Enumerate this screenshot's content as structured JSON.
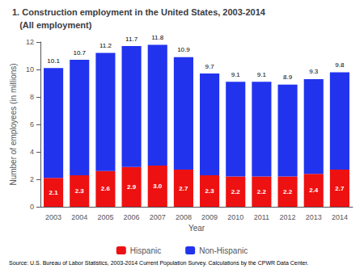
{
  "chart_data": {
    "type": "bar",
    "title": "1. Construction employment in the United States, 2003-2014",
    "subtitle": "   (All employment)",
    "annotations": [
      "Source: U.S. Bureau of Labor Statistics, 2003-2014 Current Population Survey. Calculations by the CPWR Data Center."
    ],
    "x_label": "Year",
    "y_label": "Number of employees (in millions)",
    "categories": [
      "2003",
      "2004",
      "2005",
      "2006",
      "2007",
      "2008",
      "2009",
      "2010",
      "2011",
      "2012",
      "2013",
      "2014"
    ],
    "series": [
      {
        "name": "Hispanic",
        "color": "#ee1111",
        "values": [
          2.1,
          2.3,
          2.6,
          2.9,
          3.0,
          2.7,
          2.3,
          2.2,
          2.2,
          2.2,
          2.4,
          2.7
        ],
        "value_labels": [
          "2.1",
          "2.3",
          "2.6",
          "2.9",
          "3.0",
          "2.7",
          "2.3",
          "2.2",
          "2.2",
          "2.2",
          "2.4",
          "2.7"
        ],
        "data_labels": true
      },
      {
        "name": "Non-Hispanic",
        "color": "#2233ee",
        "values": [
          8.0,
          8.4,
          8.6,
          8.8,
          8.8,
          8.2,
          7.4,
          6.9,
          6.9,
          6.7,
          6.9,
          7.1
        ]
      }
    ],
    "totals": [
      10.1,
      10.7,
      11.2,
      11.7,
      11.8,
      10.9,
      9.7,
      9.1,
      9.1,
      8.9,
      9.3,
      9.8
    ],
    "stacked": true,
    "ylim": [
      0,
      12
    ],
    "yticks": [
      0,
      2,
      4,
      6,
      8,
      10,
      12
    ],
    "grid": false,
    "legend": "bottom"
  }
}
